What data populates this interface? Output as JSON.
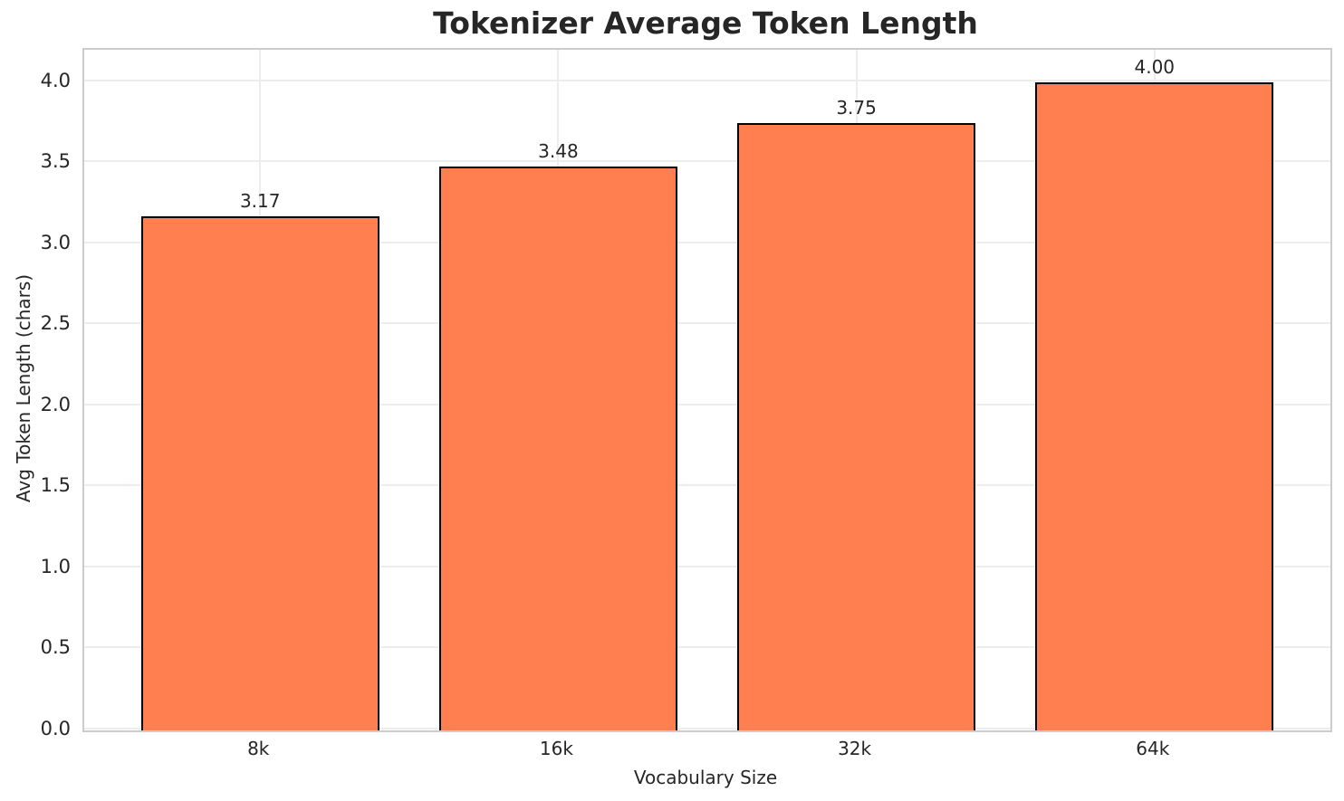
{
  "chart_data": {
    "type": "bar",
    "title": "Tokenizer Average Token Length",
    "xlabel": "Vocabulary Size",
    "ylabel": "Avg Token Length (chars)",
    "categories": [
      "8k",
      "16k",
      "32k",
      "64k"
    ],
    "values": [
      3.17,
      3.48,
      3.75,
      4.0
    ],
    "value_labels": [
      "3.17",
      "3.48",
      "3.75",
      "4.00"
    ],
    "yticks": [
      0.0,
      0.5,
      1.0,
      1.5,
      2.0,
      2.5,
      3.0,
      3.5,
      4.0
    ],
    "ytick_labels": [
      "0.0",
      "0.5",
      "1.0",
      "1.5",
      "2.0",
      "2.5",
      "3.0",
      "3.5",
      "4.0"
    ],
    "ylim": [
      0,
      4.2
    ],
    "xlim": [
      -0.59,
      3.59
    ],
    "bar_width": 0.8,
    "grid": true,
    "legend": "none",
    "colors": {
      "bar_fill": "#FF7F50",
      "bar_edge": "#000000",
      "grid": "#ededed",
      "spine": "#cccccc",
      "text": "#262626",
      "background": "#ffffff"
    }
  }
}
